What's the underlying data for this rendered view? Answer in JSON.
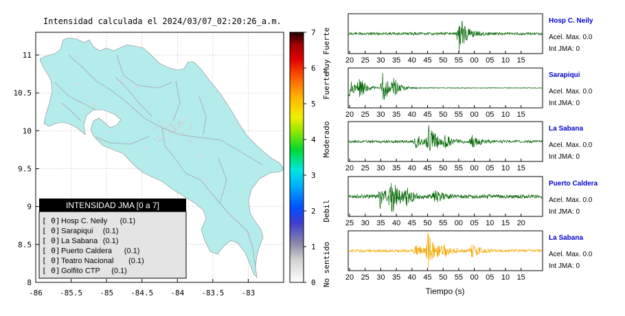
{
  "header": {
    "title": "Intensidad calculada el 2024/03/07_02:20:26_a.m."
  },
  "colors": {
    "land": "#b4ecec",
    "roads": "#a9b0b3",
    "cities": "#e8e8e8",
    "wave_normal": "#006400",
    "wave_highlight": "#f5a800",
    "station_name": "#0000cc",
    "legend_header_bg": "#000000",
    "legend_body_bg": "#e4e4e4"
  },
  "chart_data": [
    {
      "type": "map",
      "xlim": [
        -86,
        -82.5
      ],
      "ylim": [
        8,
        11.3
      ],
      "x_ticks": [
        "-86",
        "-85.5",
        "-85",
        "-84.5",
        "-84",
        "-83.5",
        "-83"
      ],
      "y_ticks": [
        "8",
        "8.5",
        "9",
        "9.5",
        "10",
        "10.5",
        "11"
      ],
      "grid": true,
      "legend": {
        "title": "INTENSIDAD JMA [0 a 7]",
        "placement": "bottom-left",
        "entries": [
          {
            "bracket": "[ 0]",
            "name": "Hosp C. Neily",
            "value": "(0.1)"
          },
          {
            "bracket": "[ 0]",
            "name": "Sarapiqui",
            "value": "(0.1)"
          },
          {
            "bracket": "[ 0]",
            "name": "La Sabana",
            "value": "(0.1)"
          },
          {
            "bracket": "[ 0]",
            "name": "Puerto Caldera",
            "value": "(0.1)"
          },
          {
            "bracket": "[ 0]",
            "name": "Teatro Nacional",
            "value": "(0.1)"
          },
          {
            "bracket": "[ 0]",
            "name": "Golfito CTP",
            "value": "(0.1)"
          }
        ]
      }
    },
    {
      "type": "heatmap",
      "colorbar_range": [
        0,
        7
      ],
      "ticks": [
        "0",
        "1",
        "2",
        "3",
        "4",
        "5",
        "6",
        "7"
      ],
      "category_labels": [
        "No sentido",
        "Debil",
        "Moderado",
        "Fuerte",
        "Muy Fuerte"
      ],
      "category_values": [
        0.5,
        2,
        4,
        5.5,
        6.5
      ]
    },
    {
      "type": "line",
      "xlabel": "Tiempo (s)",
      "panels": [
        {
          "station": "Hosp C. Neily",
          "acel": "Acel. Max. 0.0",
          "int": "Int JMA: 0",
          "ticks": [
            "20",
            "25",
            "30",
            "35",
            "40",
            "45",
            "50",
            "55",
            "00",
            "05",
            "10",
            "15"
          ],
          "x0": 20,
          "events": [
            [
              55,
              1.0
            ]
          ],
          "noise": 0.07,
          "highlight": false
        },
        {
          "station": "Sarapiqui",
          "acel": "Acel. Max. 0.0",
          "int": "Int JMA: 0",
          "ticks": [
            "20",
            "25",
            "30",
            "35",
            "40",
            "45",
            "50",
            "55",
            "00",
            "05",
            "10",
            "15"
          ],
          "x0": 20,
          "events": [
            [
              18.5,
              0.9
            ],
            [
              23,
              0.5
            ],
            [
              30.5,
              0.95
            ],
            [
              34,
              0.4
            ]
          ],
          "noise": 0.02,
          "highlight": false
        },
        {
          "station": "La Sabana",
          "acel": "Acel. Max. 0.0",
          "int": "Int JMA: 0",
          "ticks": [
            "20",
            "25",
            "30",
            "35",
            "40",
            "45",
            "50",
            "55",
            "00",
            "05",
            "10",
            "15"
          ],
          "x0": 21,
          "events": [
            [
              46,
              0.95
            ],
            [
              42,
              0.35
            ],
            [
              51,
              0.3
            ],
            [
              60,
              0.35
            ]
          ],
          "noise": 0.07,
          "highlight": false
        },
        {
          "station": "Puerto Caldera",
          "acel": "Acel. Max. 0.0",
          "int": "Int JMA: 0",
          "ticks": [
            "25",
            "30",
            "35",
            "40",
            "45",
            "50",
            "55",
            "00",
            "05",
            "10",
            "15",
            "20"
          ],
          "x0": 20,
          "events": [
            [
              33,
              1.0
            ],
            [
              29.5,
              0.6
            ],
            [
              38,
              0.35
            ],
            [
              47,
              0.35
            ]
          ],
          "noise": 0.1,
          "highlight": false
        },
        {
          "station": "La Sabana",
          "acel": "Acel. Max. 0.0",
          "int": "Int JMA: 0",
          "ticks": [
            "20",
            "25",
            "30",
            "35",
            "40",
            "45",
            "50",
            "55",
            "00",
            "05",
            "10",
            "15"
          ],
          "x0": 21,
          "events": [
            [
              46,
              1.0
            ],
            [
              42,
              0.35
            ],
            [
              51,
              0.3
            ],
            [
              60,
              0.35
            ]
          ],
          "noise": 0.07,
          "highlight": true
        }
      ]
    }
  ]
}
